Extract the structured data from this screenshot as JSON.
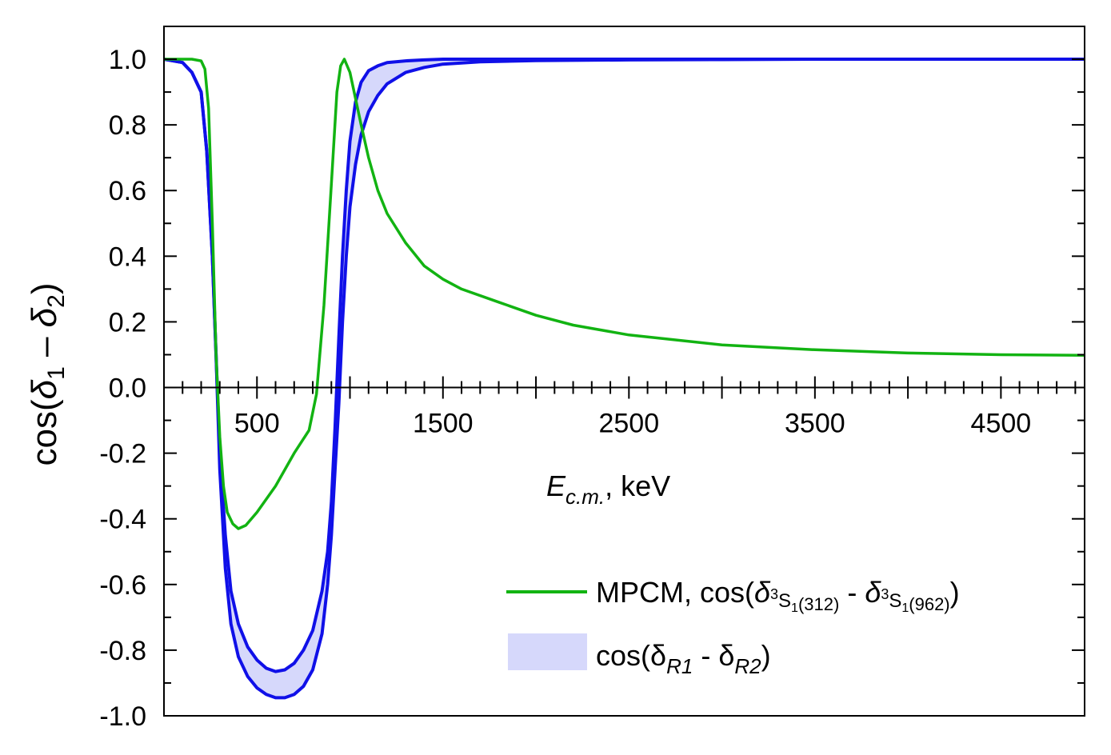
{
  "colors": {
    "green": "#12b312",
    "blue": "#1010e8",
    "band": "#d6d8fb",
    "axis": "#000000"
  },
  "chart_data": {
    "type": "line",
    "title": "",
    "xlabel": {
      "main": "E",
      "sub": "c.m.",
      "tail": ", keV"
    },
    "ylabel": {
      "pre": "cos(",
      "d1": "δ",
      "s1": "1",
      "mid": " – ",
      "d2": "δ",
      "s2": "2",
      "post": ")"
    },
    "xlim": [
      0,
      4950
    ],
    "ylim": [
      -1.0,
      1.1
    ],
    "x_tick_labels": [
      "500",
      "1500",
      "2500",
      "3500",
      "4500"
    ],
    "x_tick_values": [
      500,
      1500,
      2500,
      3500,
      4500
    ],
    "y_tick_labels": [
      "1.0",
      "0.8",
      "0.6",
      "0.4",
      "0.2",
      "0.0",
      "-0.2",
      "-0.4",
      "-0.6",
      "-0.8",
      "-1.0"
    ],
    "y_tick_values": [
      1.0,
      0.8,
      0.6,
      0.4,
      0.2,
      0.0,
      -0.2,
      -0.4,
      -0.6,
      -0.8,
      -1.0
    ],
    "series": [
      {
        "name": "MPCM",
        "kind": "line",
        "x": [
          0,
          100,
          150,
          200,
          220,
          240,
          260,
          280,
          300,
          320,
          340,
          370,
          400,
          440,
          500,
          600,
          700,
          780,
          820,
          860,
          900,
          930,
          950,
          970,
          1000,
          1030,
          1060,
          1100,
          1150,
          1200,
          1300,
          1400,
          1500,
          1600,
          1800,
          2000,
          2200,
          2500,
          3000,
          3500,
          4000,
          4500,
          4950
        ],
        "y": [
          1.0,
          1.0,
          1.0,
          0.995,
          0.97,
          0.85,
          0.5,
          0.1,
          -0.15,
          -0.3,
          -0.38,
          -0.415,
          -0.43,
          -0.42,
          -0.38,
          -0.3,
          -0.2,
          -0.13,
          -0.02,
          0.25,
          0.62,
          0.9,
          0.98,
          1.0,
          0.96,
          0.88,
          0.8,
          0.7,
          0.6,
          0.53,
          0.44,
          0.37,
          0.33,
          0.3,
          0.26,
          0.22,
          0.19,
          0.16,
          0.13,
          0.115,
          0.105,
          0.1,
          0.098
        ]
      },
      {
        "name": "band",
        "kind": "band",
        "x": [
          0,
          100,
          150,
          200,
          230,
          260,
          280,
          300,
          330,
          360,
          400,
          450,
          500,
          550,
          600,
          650,
          700,
          750,
          800,
          850,
          880,
          900,
          920,
          940,
          960,
          980,
          1000,
          1030,
          1060,
          1100,
          1150,
          1200,
          1300,
          1400,
          1500,
          1700,
          2000,
          2500,
          3000,
          3500,
          4950
        ],
        "upper": [
          1.0,
          0.99,
          0.96,
          0.9,
          0.72,
          0.4,
          0.1,
          -0.2,
          -0.45,
          -0.62,
          -0.72,
          -0.79,
          -0.83,
          -0.855,
          -0.865,
          -0.86,
          -0.84,
          -0.8,
          -0.74,
          -0.62,
          -0.5,
          -0.35,
          -0.12,
          0.15,
          0.4,
          0.6,
          0.75,
          0.87,
          0.93,
          0.965,
          0.98,
          0.99,
          0.995,
          0.998,
          1.0,
          1.0,
          1.0,
          1.0,
          1.0,
          1.0,
          1.0
        ],
        "lower": [
          1.0,
          0.99,
          0.96,
          0.9,
          0.72,
          0.4,
          0.1,
          -0.25,
          -0.55,
          -0.72,
          -0.82,
          -0.88,
          -0.915,
          -0.935,
          -0.945,
          -0.945,
          -0.935,
          -0.91,
          -0.86,
          -0.75,
          -0.6,
          -0.45,
          -0.25,
          -0.05,
          0.2,
          0.4,
          0.55,
          0.68,
          0.77,
          0.84,
          0.89,
          0.925,
          0.96,
          0.975,
          0.985,
          0.992,
          0.996,
          0.998,
          0.999,
          1.0,
          1.0
        ]
      }
    ],
    "legend": {
      "position": "bottom-right",
      "mpcm": {
        "label": "MPCM, cos(",
        "d": "δ",
        "sup": "3",
        "s": "S",
        "sub1": "1",
        "sub2": "(312)",
        "minus": " - ",
        "sub4": "(962)",
        "close": ")"
      },
      "band": {
        "label": "cos(",
        "d": "δ",
        "r1": "R1",
        "minus": " - ",
        "r2": "R2",
        "close": ")"
      }
    }
  }
}
